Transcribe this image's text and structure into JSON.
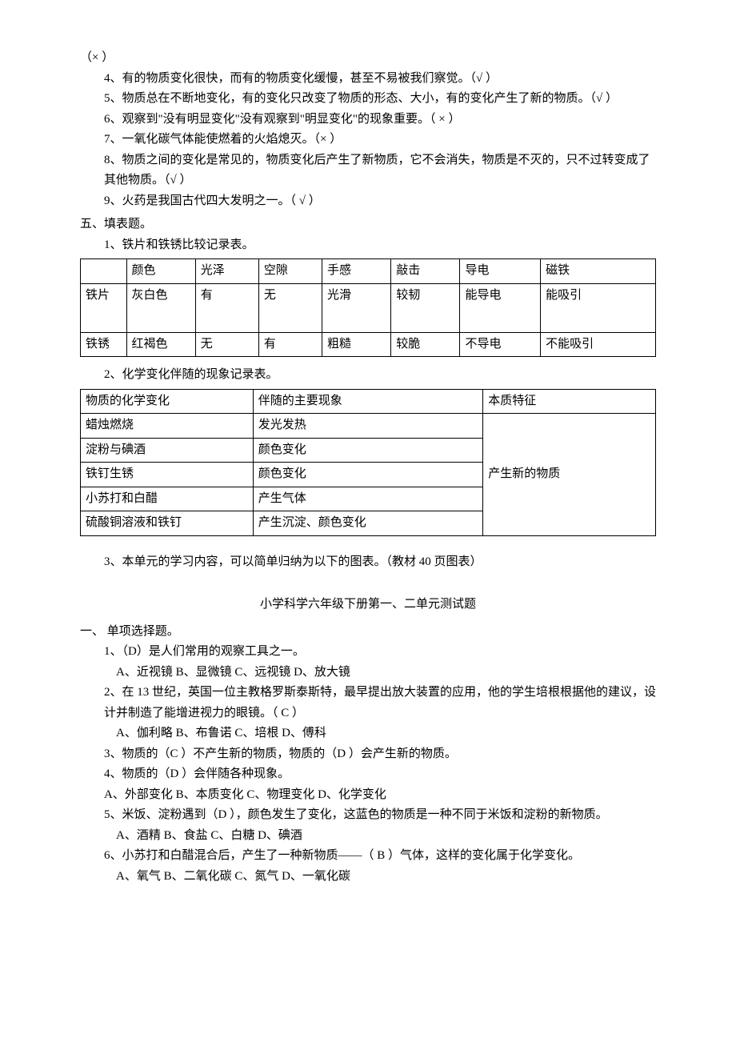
{
  "header_lines": [
    "（× ）",
    "4、有的物质变化很快，而有的物质变化缓慢，甚至不易被我们察觉。（√ ）",
    "5、物质总在不断地变化，有的变化只改变了物质的形态、大小，有的变化产生了新的物质。（√ ）",
    "6、观察到\"没有明显变化\"没有观察到\"明显变化\"的现象重要。（ × ）",
    "7、一氧化碳气体能使燃着的火焰熄灭。（× ）",
    "8、物质之间的变化是常见的，物质变化后产生了新物质，它不会消失，物质是不灭的，只不过转变成了其他物质。（√ ）",
    "9、火药是我国古代四大发明之一。（  √  ）"
  ],
  "section5": {
    "heading": "五、填表题。",
    "item1_label": "1、铁片和铁锈比较记录表。",
    "table1": {
      "columns": [
        "",
        "颜色",
        "光泽",
        "空隙",
        "手感",
        "敲击",
        "导电",
        "磁铁"
      ],
      "rows": [
        [
          "铁片",
          "灰白色",
          "有",
          "无",
          "光滑",
          "较韧",
          "能导电",
          "能吸引"
        ],
        [
          "铁锈",
          "红褐色",
          "无",
          "有",
          "粗糙",
          "较脆",
          "不导电",
          "不能吸引"
        ]
      ],
      "col_widths": [
        "8%",
        "12%",
        "11%",
        "11%",
        "12%",
        "12%",
        "14%",
        "20%"
      ]
    },
    "item2_label": "2、化学变化伴随的现象记录表。",
    "table2": {
      "headers": [
        "物质的化学变化",
        "伴随的主要现象",
        "本质特征"
      ],
      "rows": [
        [
          "蜡烛燃烧",
          "发光发热"
        ],
        [
          "淀粉与碘酒",
          "颜色变化"
        ],
        [
          "铁钉生锈",
          "颜色变化"
        ],
        [
          "小苏打和白醋",
          "产生气体"
        ],
        [
          "硫酸铜溶液和铁钉",
          "产生沉淀、颜色变化"
        ]
      ],
      "merged_cell": "产生新的物质",
      "col_widths": [
        "30%",
        "40%",
        "30%"
      ]
    },
    "item3_label": "3、本单元的学习内容，可以简单归纳为以下的图表。（教材 40 页图表）"
  },
  "test": {
    "title": "小学科学六年级下册第一、二单元测试题",
    "section1_head": "一、   单项选择题。",
    "questions": [
      {
        "q": "1、（D）是人们常用的观察工具之一。",
        "opts": "A、近视镜     B、显微镜    C、远视镜   D、放大镜"
      },
      {
        "q": "2、在 13 世纪，英国一位主教格罗斯泰斯特，最早提出放大装置的应用，他的学生培根根据他的建议，设计并制造了能增进视力的眼镜。（ C ）",
        "opts": "A、伽利略     B、布鲁诺     C、培根     D、傅科"
      },
      {
        "q": "3、物质的（C ）不产生新的物质，物质的（D ）会产生新的物质。",
        "opts": ""
      },
      {
        "q": "4、物质的（D  ）会伴随各种现象。",
        "opts": "A、外部变化     B、本质变化     C、物理变化     D、化学变化"
      },
      {
        "q": "5、米饭、淀粉遇到（D ），颜色发生了变化，这蓝色的物质是一种不同于米饭和淀粉的新物质。",
        "opts": "A、酒精       B、食盐      C、白糖      D、碘酒"
      },
      {
        "q": "6、小苏打和白醋混合后，产生了一种新物质——（ B ）气体，这样的变化属于化学变化。",
        "opts": "A、氧气     B、二氧化碳     C、氮气       D、一氧化碳"
      }
    ]
  }
}
